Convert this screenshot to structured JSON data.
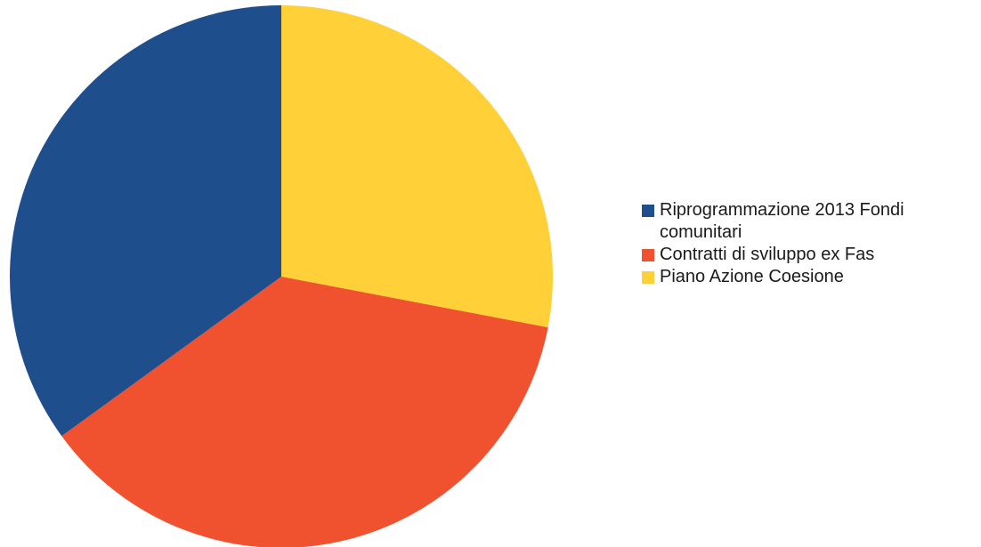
{
  "chart_data": {
    "type": "pie",
    "start_angle_deg": 0,
    "direction": "clockwise",
    "legend_position": "right",
    "slices": [
      {
        "label": "Piano Azione Coesione",
        "value": 28.0,
        "color": "#ffd038"
      },
      {
        "label": "Contratti di sviluppo ex Fas",
        "value": 37.0,
        "color": "#f0512e"
      },
      {
        "label": "Riprogrammazione 2013 Fondi comunitari",
        "value": 35.0,
        "color": "#1f4e8c"
      }
    ],
    "legend": [
      {
        "label": "Riprogrammazione 2013 Fondi comunitari",
        "color": "#1f4e8c"
      },
      {
        "label": "Contratti di sviluppo ex Fas",
        "color": "#f0512e"
      },
      {
        "label": "Piano Azione Coesione",
        "color": "#ffd038"
      }
    ]
  }
}
